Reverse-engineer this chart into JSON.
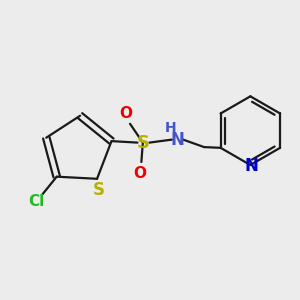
{
  "background_color": "#ececec",
  "bond_color": "#1a1a1a",
  "bond_width": 1.6,
  "figsize": [
    3.0,
    3.0
  ],
  "dpi": 100,
  "colors": {
    "S": "#b8b000",
    "Cl": "#22bb22",
    "O": "#ee0000",
    "N": "#4455cc",
    "H": "#4455cc",
    "N_py": "#0000cc",
    "C": "#1a1a1a"
  }
}
